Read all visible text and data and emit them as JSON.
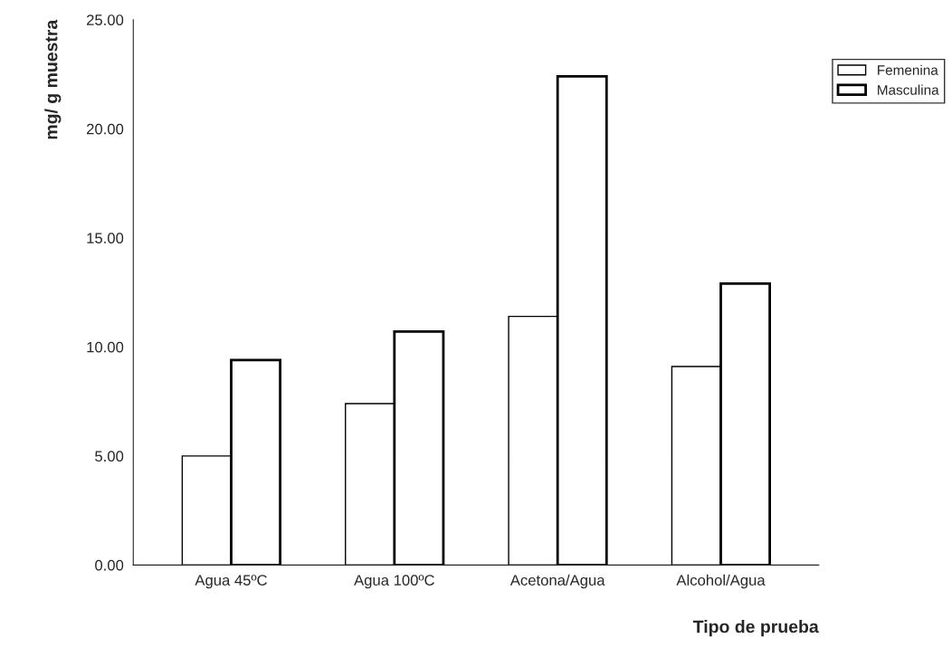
{
  "chart_data": {
    "type": "bar",
    "xlabel": "Tipo de prueba",
    "ylabel": "mg/ g muestra",
    "categories": [
      "Agua 45ºC",
      "Agua 100ºC",
      "Acetona/Agua",
      "Alcohol/Agua"
    ],
    "series": [
      {
        "name": "Femenina",
        "color": "#ffffff",
        "values": [
          5.0,
          7.4,
          11.4,
          9.1
        ]
      },
      {
        "name": "Masculina",
        "color": "#ffffff",
        "values": [
          9.4,
          10.7,
          22.4,
          12.9
        ]
      }
    ],
    "ylim": [
      0,
      25
    ],
    "yticks": [
      {
        "value": 0,
        "label": "0.00"
      },
      {
        "value": 5,
        "label": "5.00"
      },
      {
        "value": 10,
        "label": "10.00"
      },
      {
        "value": 15,
        "label": "15.00"
      },
      {
        "value": 20,
        "label": "20.00"
      },
      {
        "value": 25,
        "label": "25.00"
      }
    ],
    "grid": false,
    "legend": "top right"
  }
}
